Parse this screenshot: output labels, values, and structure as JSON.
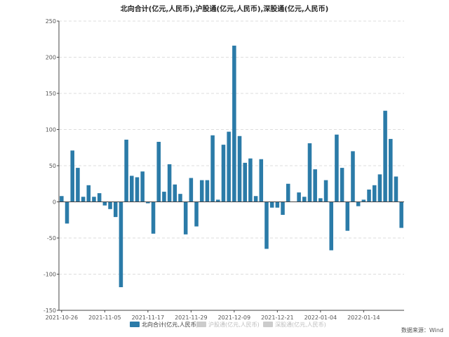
{
  "chart_data": {
    "type": "bar",
    "title": "北向合计(亿元,人民币),沪股通(亿元,人民币),深股通(亿元,人民币)",
    "ylim": [
      -150,
      250
    ],
    "yticks": [
      -150,
      -100,
      -50,
      0,
      50,
      100,
      150,
      200,
      250
    ],
    "xtick_labels": [
      "2021-10-26",
      "2021-11-05",
      "2021-11-17",
      "2021-11-29",
      "2021-12-09",
      "2021-12-21",
      "2022-01-04",
      "2022-01-14"
    ],
    "xtick_positions": [
      0,
      8,
      16,
      24,
      32,
      40,
      48,
      56
    ],
    "grid": true,
    "legend_position": "bottom",
    "series": [
      {
        "name": "北向合计(亿元,人民币)",
        "color": "#2b7ba8",
        "active": true,
        "values": [
          8,
          -30,
          71,
          47,
          7,
          23,
          7,
          12,
          -5,
          -10,
          -21,
          -118,
          86,
          36,
          34,
          42,
          -2,
          -44,
          83,
          14,
          52,
          24,
          11,
          -45,
          33,
          -34,
          30,
          30,
          92,
          3,
          79,
          97,
          216,
          91,
          54,
          60,
          8,
          59,
          -65,
          -8,
          -8,
          -18,
          25,
          0,
          13,
          7,
          81,
          45,
          5,
          30,
          -67,
          93,
          47,
          -40,
          70,
          -6,
          3,
          17,
          23,
          38,
          126,
          87,
          35,
          -36
        ]
      },
      {
        "name": "沪股通(亿元,人民币)",
        "color": "#cccccc",
        "active": false,
        "values": []
      },
      {
        "name": "深股通(亿元,人民币)",
        "color": "#cccccc",
        "active": false,
        "values": []
      }
    ]
  },
  "source_note": "数据来源：Wind"
}
